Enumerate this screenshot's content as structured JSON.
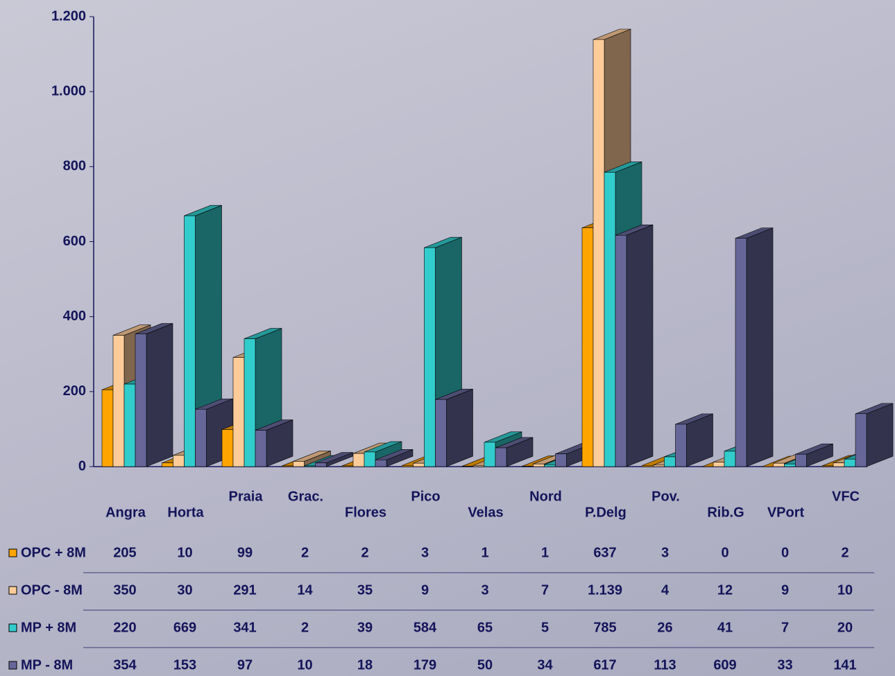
{
  "chart_data": {
    "type": "bar3d",
    "categories": [
      "Angra",
      "Horta",
      "Praia",
      "Grac.",
      "Flores",
      "Pico",
      "Velas",
      "Nord",
      "P.Delg",
      "Pov.",
      "Rib.G",
      "VPort",
      "VFC"
    ],
    "series": [
      {
        "name": "OPC + 8M",
        "color": "#FFA500",
        "values": [
          205,
          10,
          99,
          2,
          2,
          3,
          1,
          1,
          637,
          3,
          0,
          0,
          2
        ]
      },
      {
        "name": "OPC - 8M",
        "color": "#FFCC99",
        "values": [
          350,
          30,
          291,
          14,
          35,
          9,
          3,
          7,
          1139,
          4,
          12,
          9,
          10
        ],
        "value_labels": [
          "350",
          "30",
          "291",
          "14",
          "35",
          "9",
          "3",
          "7",
          "1.139",
          "4",
          "12",
          "9",
          "10"
        ]
      },
      {
        "name": "MP + 8M",
        "color": "#33CCCC",
        "values": [
          220,
          669,
          341,
          2,
          39,
          584,
          65,
          5,
          785,
          26,
          41,
          7,
          20
        ]
      },
      {
        "name": "MP - 8M",
        "color": "#666699",
        "values": [
          354,
          153,
          97,
          10,
          18,
          179,
          50,
          34,
          617,
          113,
          609,
          33,
          141
        ]
      }
    ],
    "ylim": [
      0,
      1200
    ],
    "yticks": [
      0,
      200,
      400,
      600,
      800,
      {
        "value": 1000,
        "label": "1.000"
      },
      {
        "value": 1200,
        "label": "1.200"
      }
    ],
    "data_table": true
  }
}
